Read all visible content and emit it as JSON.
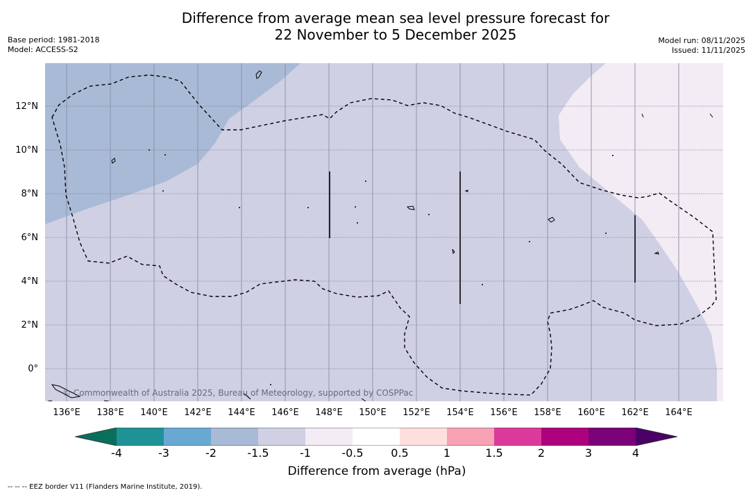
{
  "title": {
    "line1": "Difference from average mean sea level pressure forecast for",
    "line2": "22 November to 5 December 2025"
  },
  "meta_left": {
    "base_period": "Base period: 1981-2018",
    "model": "Model: ACCESS-S2"
  },
  "meta_right": {
    "model_run": "Model run: 08/11/2025",
    "issued": "Issued: 11/11/2025"
  },
  "map": {
    "lat_labels": [
      "12°N",
      "10°N",
      "8°N",
      "6°N",
      "4°N",
      "2°N",
      "0°"
    ],
    "lon_labels": [
      "136°E",
      "138°E",
      "140°E",
      "142°E",
      "144°E",
      "146°E",
      "148°E",
      "150°E",
      "152°E",
      "154°E",
      "156°E",
      "158°E",
      "160°E",
      "162°E",
      "164°E"
    ],
    "copyright": "© Commonwealth of Australia 2025, Bureau of Meteorology, supported by COSPPac",
    "region_colors": {
      "west": "#a8bad6",
      "central": "#d0d0e4",
      "east": "#f4ecf4"
    }
  },
  "colorbar": {
    "tick_labels": [
      "-4",
      "-3",
      "-2",
      "-1.5",
      "-1",
      "-0.5",
      "0.5",
      "1",
      "1.5",
      "2",
      "3",
      "4"
    ],
    "colors": [
      "#1f9296",
      "#69a8d2",
      "#a8bad6",
      "#d0d0e4",
      "#f4ecf4",
      "#ffffff",
      "#fde0dd",
      "#f8a2b5",
      "#dc3a9a",
      "#ae017e",
      "#7a0177"
    ],
    "under_color": "#0b6e5c",
    "over_color": "#4a0064",
    "title": "Difference from average (hPa)"
  },
  "footer": "--  --  -- EEZ border V11 (Flanders Marine Institute, 2019)."
}
